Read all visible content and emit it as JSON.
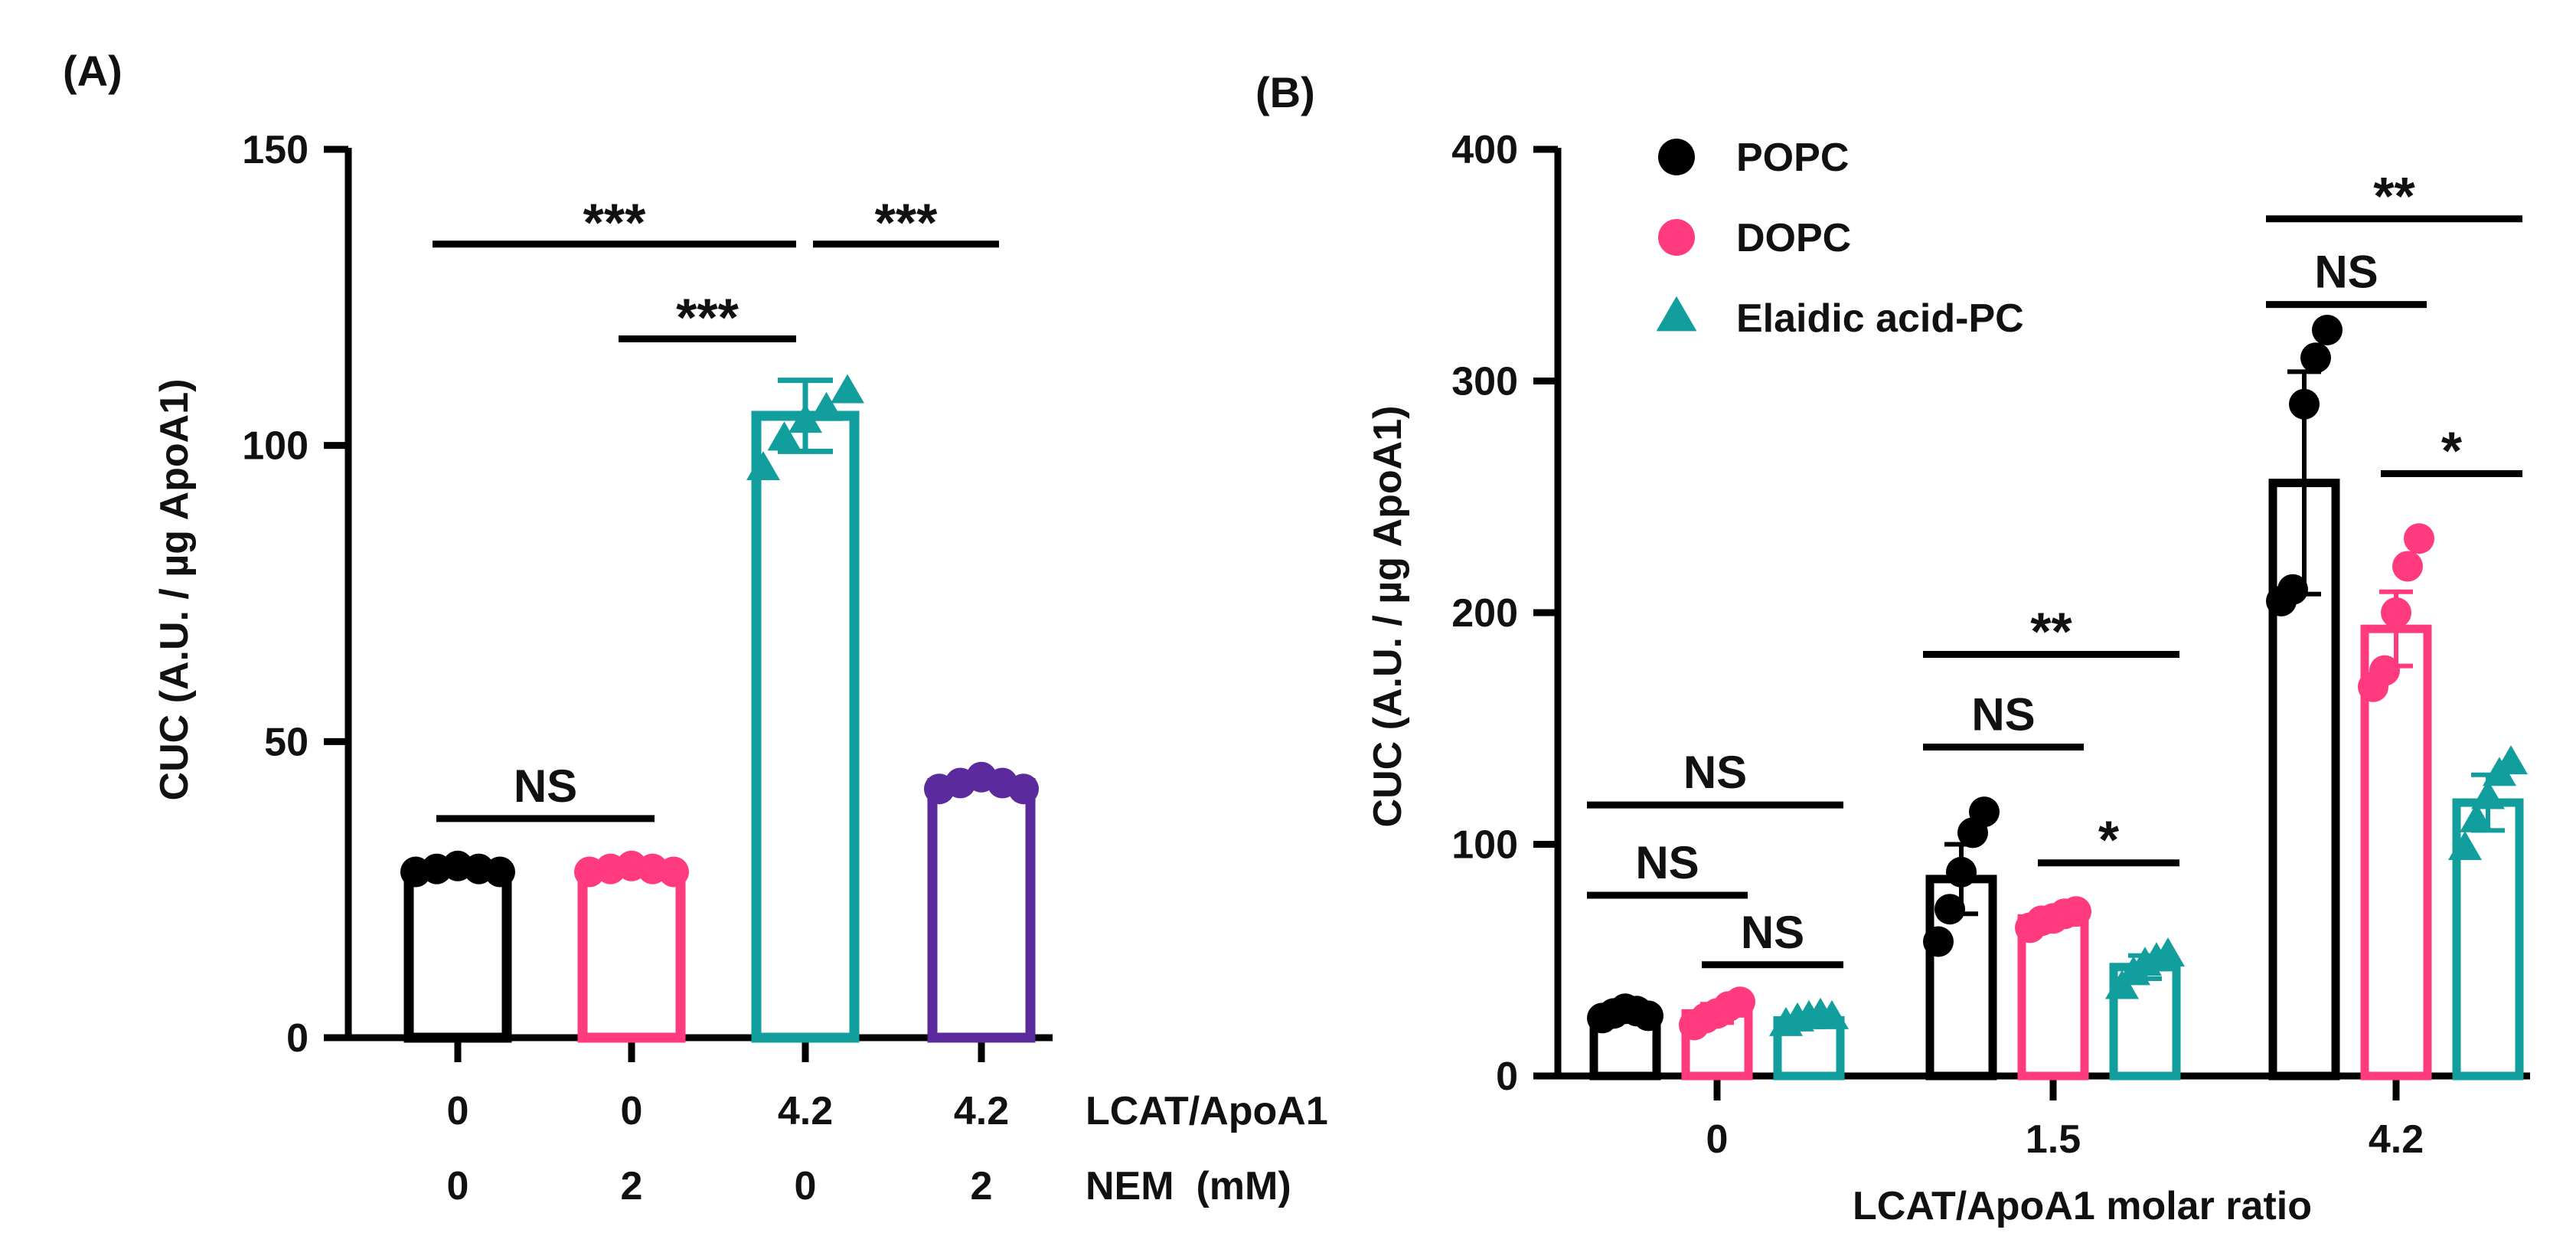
{
  "colors": {
    "black": "#000000",
    "pink": "#ff3a7f",
    "teal": "#129e9c",
    "purple": "#5b2a9c"
  },
  "chart_data": [
    {
      "type": "bar",
      "panel_label": "(A)",
      "ylabel": "CUC (A.U. / µg ApoA1)",
      "ylim": [
        0,
        150
      ],
      "yticks": [
        "0",
        "50",
        "100",
        "150"
      ],
      "row_labels": [
        "LCAT/ApoA1",
        "NEM  (mM)"
      ],
      "categories": [
        {
          "lcat_apoa1": "0",
          "nem": "0"
        },
        {
          "lcat_apoa1": "0",
          "nem": "2"
        },
        {
          "lcat_apoa1": "4.2",
          "nem": "0"
        },
        {
          "lcat_apoa1": "4.2",
          "nem": "2"
        }
      ],
      "series": [
        {
          "values": [
            28.5,
            28.5,
            105,
            43
          ],
          "errors": [
            1,
            1,
            6,
            1
          ],
          "colors": [
            "black",
            "pink",
            "teal",
            "purple"
          ],
          "markers": [
            "circle",
            "circle",
            "triangle",
            "circle"
          ],
          "points": [
            [
              28,
              28.5,
              29,
              28.5,
              28
            ],
            [
              28,
              28.5,
              29,
              28.5,
              28
            ],
            [
              96,
              101,
              104,
              106,
              109
            ],
            [
              42,
              43,
              44,
              43,
              42
            ]
          ]
        }
      ],
      "significance": [
        {
          "from": 0,
          "to": 2,
          "y": 134,
          "label": "***"
        },
        {
          "from": 2,
          "to": 3,
          "y": 134,
          "label": "***"
        },
        {
          "from": 1,
          "to": 2,
          "y": 118,
          "label": "***"
        },
        {
          "from": 0,
          "to": 1,
          "y": 37,
          "label": "NS"
        }
      ]
    },
    {
      "type": "bar",
      "panel_label": "(B)",
      "ylabel": "CUC (A.U. / µg ApoA1)",
      "xlabel": "LCAT/ApoA1 molar ratio",
      "ylim": [
        0,
        400
      ],
      "yticks": [
        "0",
        "100",
        "200",
        "300",
        "400"
      ],
      "categories": [
        "0",
        "1.5",
        "4.2"
      ],
      "legend_position": "top-left",
      "series": [
        {
          "name": "POPC",
          "color": "black",
          "marker": "circle",
          "values": [
            27,
            85,
            256
          ],
          "errors": [
            3,
            15,
            48
          ],
          "points": [
            [
              25,
              27,
              29,
              28,
              26
            ],
            [
              58,
              72,
              88,
              105,
              114
            ],
            [
              205,
              210,
              290,
              310,
              322
            ]
          ]
        },
        {
          "name": "DOPC",
          "color": "pink",
          "marker": "circle",
          "values": [
            27,
            68,
            193
          ],
          "errors": [
            4,
            3,
            16
          ],
          "points": [
            [
              22,
              25,
              27,
              30,
              32
            ],
            [
              64,
              67,
              68,
              70,
              71
            ],
            [
              168,
              175,
              200,
              220,
              232
            ]
          ]
        },
        {
          "name": "Elaidic acid-PC",
          "color": "teal",
          "marker": "triangle",
          "values": [
            24,
            47,
            118
          ],
          "errors": [
            2,
            5,
            12
          ],
          "points": [
            [
              22,
              24,
              25,
              26,
              25
            ],
            [
              38,
              44,
              48,
              50,
              52
            ],
            [
              98,
              110,
              120,
              130,
              135
            ]
          ]
        }
      ],
      "significance": [
        {
          "group": 0,
          "from": 0,
          "to": 2,
          "y": 117,
          "label": "NS"
        },
        {
          "group": 0,
          "from": 0,
          "to": 1,
          "y": 78,
          "label": "NS"
        },
        {
          "group": 0,
          "from": 1,
          "to": 2,
          "y": 48,
          "label": "NS"
        },
        {
          "group": 1,
          "from": 0,
          "to": 2,
          "y": 182,
          "label": "**"
        },
        {
          "group": 1,
          "from": 0,
          "to": 1,
          "y": 142,
          "label": "NS"
        },
        {
          "group": 1,
          "from": 1,
          "to": 2,
          "y": 92,
          "label": "*"
        },
        {
          "group": 2,
          "from": 0,
          "to": 2,
          "y": 370,
          "label": "**"
        },
        {
          "group": 2,
          "from": 0,
          "to": 1,
          "y": 333,
          "label": "NS"
        },
        {
          "group": 2,
          "from": 1,
          "to": 2,
          "y": 260,
          "label": "*"
        }
      ]
    }
  ]
}
